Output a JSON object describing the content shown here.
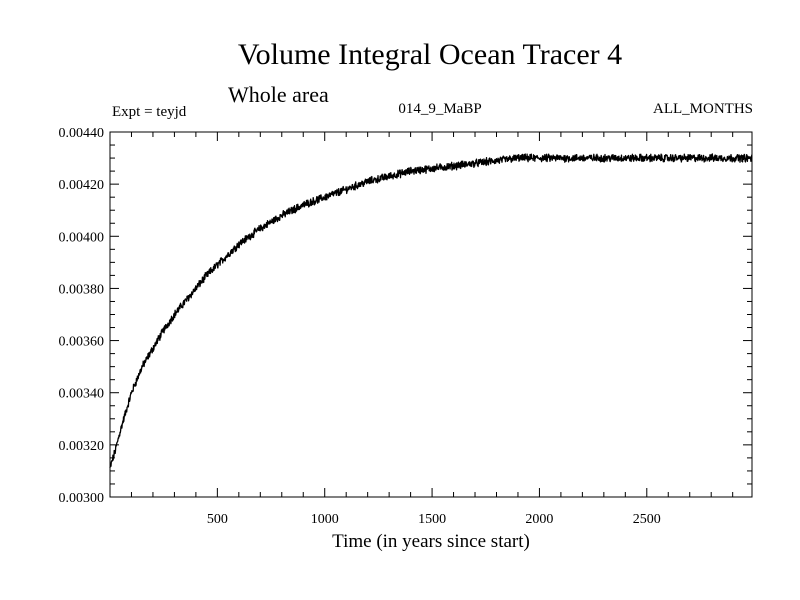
{
  "header": {
    "title": "Volume Integral Ocean Tracer 4",
    "subtitle": "Whole area",
    "experiment": "Expt = teyjd",
    "run_label": "014_9_MaBP",
    "months_label": "ALL_MONTHS"
  },
  "chart_data": {
    "type": "line",
    "title": "Volume Integral Ocean Tracer 4",
    "subtitle": "Whole area",
    "xlabel": "Time (in years since start)",
    "ylabel": "",
    "xlim": [
      0,
      2990
    ],
    "ylim": [
      0.003,
      0.0044
    ],
    "xticks": [
      500,
      1000,
      1500,
      2000,
      2500
    ],
    "xtick_labels": [
      "500",
      "1000",
      "1500",
      "2000",
      "2500"
    ],
    "yticks": [
      0.003,
      0.0032,
      0.0034,
      0.0036,
      0.0038,
      0.004,
      0.0042,
      0.0044
    ],
    "ytick_labels": [
      "0.00300",
      "0.00320",
      "0.00340",
      "0.00360",
      "0.00380",
      "0.00400",
      "0.00420",
      "0.00440"
    ],
    "grid": false,
    "series": [
      {
        "name": "Tracer 4 volume integral",
        "color": "#000000",
        "x": [
          0,
          25,
          50,
          75,
          100,
          150,
          200,
          250,
          300,
          350,
          400,
          450,
          500,
          600,
          700,
          800,
          900,
          1000,
          1100,
          1200,
          1300,
          1400,
          1500,
          1600,
          1700,
          1800,
          1900,
          2000,
          2100,
          2200,
          2300,
          2400,
          2500,
          2600,
          2700,
          2800,
          2900,
          2990
        ],
        "y": [
          0.00311,
          0.00318,
          0.00326,
          0.00333,
          0.0034,
          0.0035,
          0.00357,
          0.00364,
          0.0037,
          0.00375,
          0.0038,
          0.00385,
          0.00389,
          0.00397,
          0.00403,
          0.00408,
          0.00412,
          0.00415,
          0.00418,
          0.00421,
          0.00423,
          0.00425,
          0.00426,
          0.00427,
          0.00428,
          0.00429,
          0.0043,
          0.0043,
          0.0043,
          0.0043,
          0.0043,
          0.0043,
          0.0043,
          0.0043,
          0.0043,
          0.0043,
          0.0043,
          0.0043
        ]
      }
    ]
  }
}
